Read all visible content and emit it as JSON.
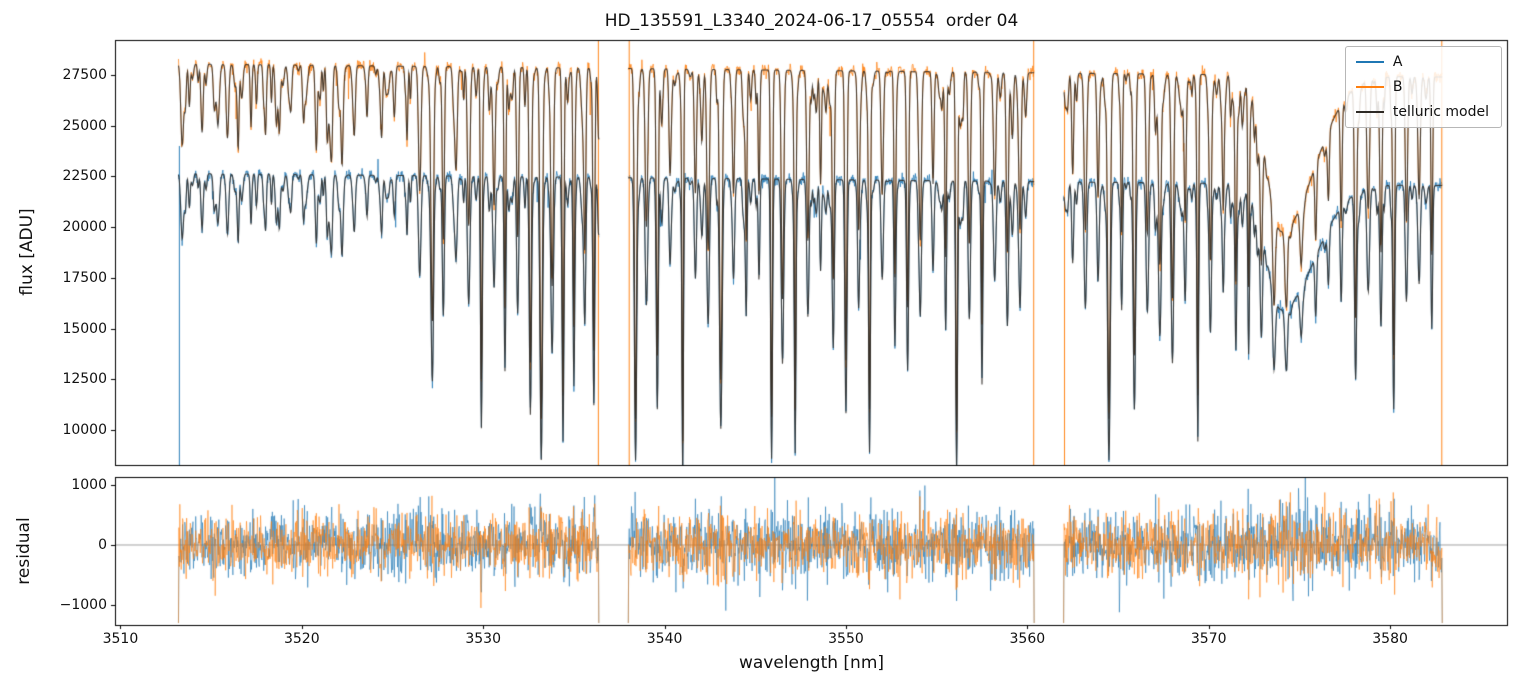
{
  "figure_title": "HD_135591_L3340_2024-06-17_05554  order 04",
  "chart_data": [
    {
      "type": "line",
      "panel": "flux",
      "title": "HD_135591_L3340_2024-06-17_05554  order 04",
      "ylabel": "flux [ADU]",
      "ylim": [
        8275,
        29225
      ],
      "yticks": [
        10000,
        12500,
        15000,
        17500,
        20000,
        22500,
        25000,
        27500
      ],
      "xlim": [
        3509.7,
        3586.5
      ],
      "x_segments": [
        [
          3513.2,
          3536.4
        ],
        [
          3538.0,
          3560.4
        ],
        [
          3562.0,
          3582.9
        ]
      ],
      "grid": false,
      "legend_position": "upper right",
      "series": [
        {
          "name": "A",
          "color": "#1f77b4",
          "continuum_start": 22650,
          "continuum_end": 22050,
          "noise_sigma": 145
        },
        {
          "name": "B",
          "color": "#ff7f0e",
          "continuum_start": 28050,
          "continuum_end": 27400,
          "noise_sigma": 165
        },
        {
          "name": "telluric model",
          "color": "#2e2a25"
        }
      ],
      "telluric_lines": [
        [
          3513.8,
          0.06
        ],
        [
          3514.5,
          0.12
        ],
        [
          3515.2,
          0.07
        ],
        [
          3515.9,
          0.13
        ],
        [
          3516.5,
          0.08
        ],
        [
          3517.2,
          0.11
        ],
        [
          3517.9,
          0.06
        ],
        [
          3518.6,
          0.1
        ],
        [
          3519.4,
          0.07
        ],
        [
          3520.1,
          0.09
        ],
        [
          3520.8,
          0.15
        ],
        [
          3521.4,
          0.12
        ],
        [
          3522.2,
          0.07
        ],
        [
          3522.9,
          0.1
        ],
        [
          3523.6,
          0.08
        ],
        [
          3524.4,
          0.11
        ],
        [
          3525.1,
          0.09
        ],
        [
          3525.8,
          0.13
        ],
        [
          3526.5,
          0.22
        ],
        [
          3527.2,
          0.42
        ],
        [
          3527.8,
          0.3
        ],
        [
          3528.5,
          0.18
        ],
        [
          3529.2,
          0.28
        ],
        [
          3529.9,
          0.55
        ],
        [
          3530.6,
          0.24
        ],
        [
          3531.2,
          0.42
        ],
        [
          3531.9,
          0.3
        ],
        [
          3532.6,
          0.52
        ],
        [
          3533.2,
          0.62
        ],
        [
          3533.8,
          0.38
        ],
        [
          3534.4,
          0.58
        ],
        [
          3535.0,
          0.45
        ],
        [
          3535.6,
          0.32
        ],
        [
          3536.1,
          0.5
        ],
        [
          3538.4,
          0.62
        ],
        [
          3539.0,
          0.28
        ],
        [
          3539.6,
          0.5
        ],
        [
          3540.3,
          0.18
        ],
        [
          3541.0,
          0.65
        ],
        [
          3541.7,
          0.22
        ],
        [
          3542.4,
          0.32
        ],
        [
          3543.1,
          0.55
        ],
        [
          3543.8,
          0.22
        ],
        [
          3544.5,
          0.28
        ],
        [
          3545.2,
          0.18
        ],
        [
          3545.9,
          0.6
        ],
        [
          3546.5,
          0.4
        ],
        [
          3547.2,
          0.58
        ],
        [
          3547.9,
          0.26
        ],
        [
          3548.6,
          0.2
        ],
        [
          3549.3,
          0.36
        ],
        [
          3550.0,
          0.5
        ],
        [
          3550.7,
          0.28
        ],
        [
          3551.3,
          0.6
        ],
        [
          3552.0,
          0.22
        ],
        [
          3552.7,
          0.32
        ],
        [
          3553.4,
          0.42
        ],
        [
          3554.1,
          0.25
        ],
        [
          3554.8,
          0.2
        ],
        [
          3555.5,
          0.32
        ],
        [
          3556.1,
          0.63
        ],
        [
          3556.8,
          0.28
        ],
        [
          3557.5,
          0.45
        ],
        [
          3558.2,
          0.22
        ],
        [
          3558.9,
          0.32
        ],
        [
          3559.6,
          0.26
        ],
        [
          3562.5,
          0.18
        ],
        [
          3563.2,
          0.28
        ],
        [
          3563.9,
          0.22
        ],
        [
          3564.5,
          0.6
        ],
        [
          3565.2,
          0.28
        ],
        [
          3565.9,
          0.48
        ],
        [
          3566.6,
          0.22
        ],
        [
          3567.3,
          0.32
        ],
        [
          3568.0,
          0.4
        ],
        [
          3568.7,
          0.26
        ],
        [
          3569.4,
          0.55
        ],
        [
          3570.1,
          0.28
        ],
        [
          3570.8,
          0.22
        ],
        [
          3571.5,
          0.32
        ],
        [
          3572.2,
          0.36
        ],
        [
          3572.9,
          0.26
        ],
        [
          3573.6,
          0.22
        ],
        [
          3574.3,
          0.16
        ],
        [
          3575.1,
          0.14
        ],
        [
          3575.9,
          0.16
        ],
        [
          3576.6,
          0.13
        ],
        [
          3577.3,
          0.18
        ],
        [
          3578.1,
          0.42
        ],
        [
          3578.8,
          0.22
        ],
        [
          3579.5,
          0.28
        ],
        [
          3580.2,
          0.5
        ],
        [
          3580.9,
          0.26
        ],
        [
          3581.6,
          0.22
        ],
        [
          3582.3,
          0.32
        ]
      ],
      "broad_feature": {
        "center": 3574.0,
        "sigma_left": 0.8,
        "sigma_right": 1.8,
        "depth": 0.28
      },
      "weak_lines": {
        "per_nm": 4,
        "max_depth": 0.07
      },
      "edge_spikes": [
        {
          "x": 3513.25,
          "series": "A",
          "y0": 8275,
          "y1": 24000
        },
        {
          "x": 3536.35,
          "series": "B",
          "y0": 8275,
          "y1": 29225
        },
        {
          "x": 3538.05,
          "series": "B",
          "y0": 8275,
          "y1": 29225
        },
        {
          "x": 3560.35,
          "series": "B",
          "y0": 8275,
          "y1": 29225
        },
        {
          "x": 3562.05,
          "series": "B",
          "y0": 8275,
          "y1": 26500
        },
        {
          "x": 3582.85,
          "series": "B",
          "y0": 8275,
          "y1": 29225
        }
      ]
    },
    {
      "type": "line",
      "panel": "residual",
      "ylabel": "residual",
      "xlabel": "wavelength [nm]",
      "ylim": [
        -1333,
        1133
      ],
      "yticks": [
        -1000,
        0,
        1000
      ],
      "ytick_labels": [
        "−1000",
        "0",
        "1000"
      ],
      "xticks": [
        3510,
        3520,
        3530,
        3540,
        3550,
        3560,
        3570,
        3580
      ],
      "zero_line_color": "#8a8a8a",
      "series": [
        {
          "name": "A residual",
          "color": "#1f77b4",
          "sigma": 250
        },
        {
          "name": "B residual",
          "color": "#ff7f0e",
          "sigma": 230
        }
      ]
    }
  ]
}
